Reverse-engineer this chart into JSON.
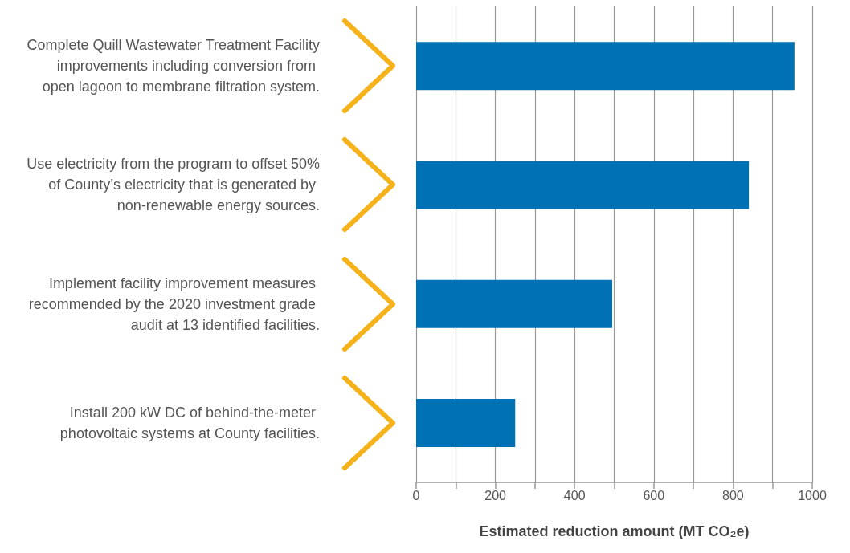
{
  "chart_data": {
    "type": "bar",
    "orientation": "horizontal",
    "xlabel": "Estimated reduction amount (MT CO₂e)",
    "categories": [
      "Complete Quill Wastewater Treatment Facility improvements including conversion from open lagoon to membrane filtration system.",
      "Use electricity from the program to offset 50% of County’s electricity that is generated by non-renewable energy sources.",
      "Implement facility improvement measures recommended by the 2020 investment grade audit at 13 identified facilities.",
      "Install 200 kW DC of behind-the-meter photovoltaic systems at County facilities."
    ],
    "values": [
      955,
      840,
      495,
      250
    ],
    "color": "#0071b3",
    "xlim": [
      0,
      1000
    ],
    "xticks": [
      0,
      {
        "value": 100,
        "label": null
      },
      200,
      {
        "value": 300,
        "label": null
      },
      400,
      {
        "value": 500,
        "label": null
      },
      600,
      {
        "value": 700,
        "label": null
      },
      800,
      {
        "value": 900,
        "label": null
      },
      1000
    ],
    "grid": "x"
  }
}
